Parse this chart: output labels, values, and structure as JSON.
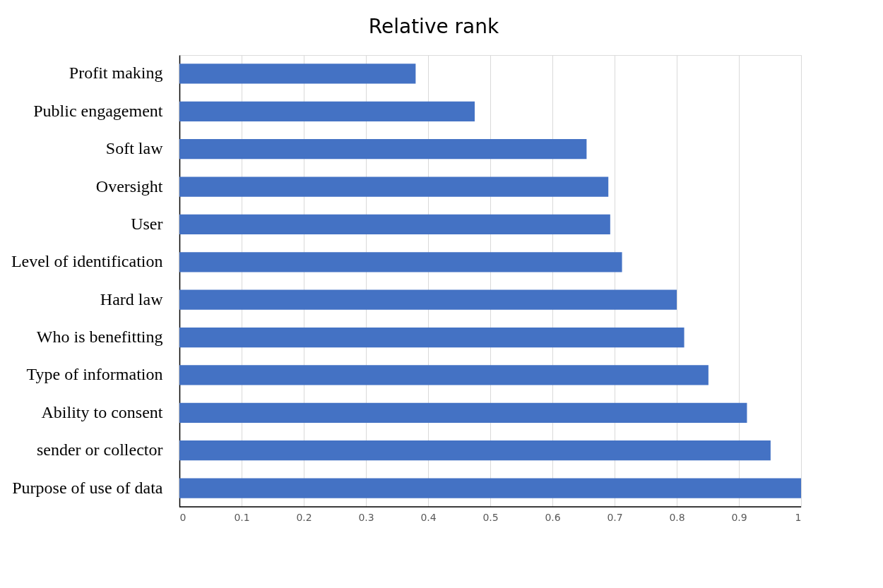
{
  "chart_data": {
    "type": "bar",
    "orientation": "horizontal",
    "title": "Relative rank",
    "categories": [
      "Profit making",
      "Public engagement",
      "Soft law",
      "Oversight",
      "User",
      "Level of identification",
      "Hard law",
      "Who is benefitting",
      "Type of information",
      "Ability to consent",
      "sender or collector",
      "Purpose of use of data"
    ],
    "values": [
      0.38,
      0.475,
      0.655,
      0.69,
      0.693,
      0.712,
      0.8,
      0.812,
      0.851,
      0.913,
      0.951,
      1.0
    ],
    "color": "#4472c4",
    "xlim": [
      0,
      1
    ],
    "xticks": [
      0,
      0.1,
      0.2,
      0.3,
      0.4,
      0.5,
      0.6,
      0.7,
      0.8,
      0.9,
      1
    ],
    "grid": "x"
  }
}
